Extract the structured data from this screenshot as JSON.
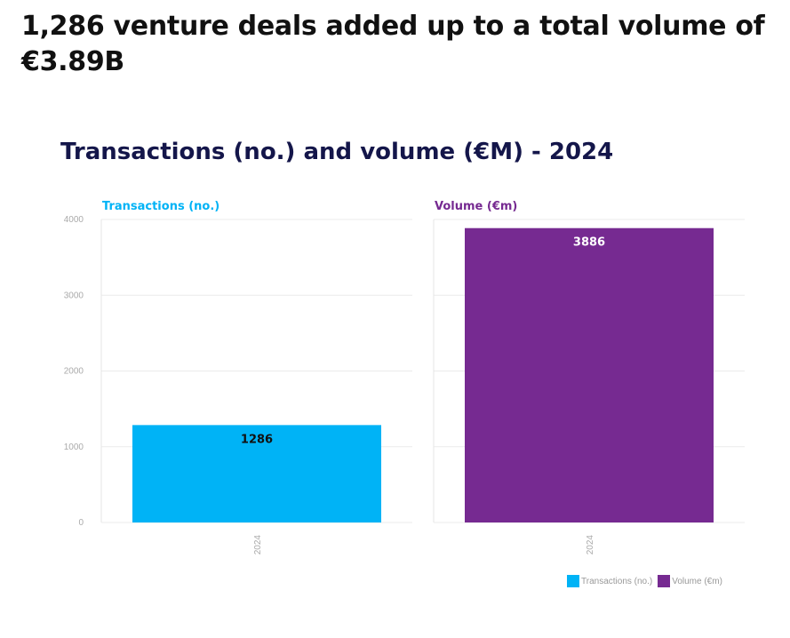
{
  "headline": "1,286 venture deals added up to a total volume of €3.89B",
  "chart_data": {
    "type": "bar",
    "title": "Transactions (no.) and volume (€M) - 2024",
    "ylim": [
      0,
      4000
    ],
    "yticks": [
      0,
      1000,
      2000,
      3000,
      4000
    ],
    "grid": true,
    "legend_position": "bottom-right",
    "panels": [
      {
        "name": "Transactions (no.)",
        "color": "#00b3f6",
        "categories": [
          "2024"
        ],
        "values": [
          1286
        ],
        "data_labels": [
          "1286"
        ],
        "label_color": "#111111"
      },
      {
        "name": "Volume (€m)",
        "color": "#762a91",
        "categories": [
          "2024"
        ],
        "values": [
          3886
        ],
        "data_labels": [
          "3886"
        ],
        "label_color": "#ffffff"
      }
    ],
    "legend": [
      {
        "label": "Transactions (no.)",
        "color": "#00b3f6"
      },
      {
        "label": "Volume (€m)",
        "color": "#762a91"
      }
    ]
  }
}
